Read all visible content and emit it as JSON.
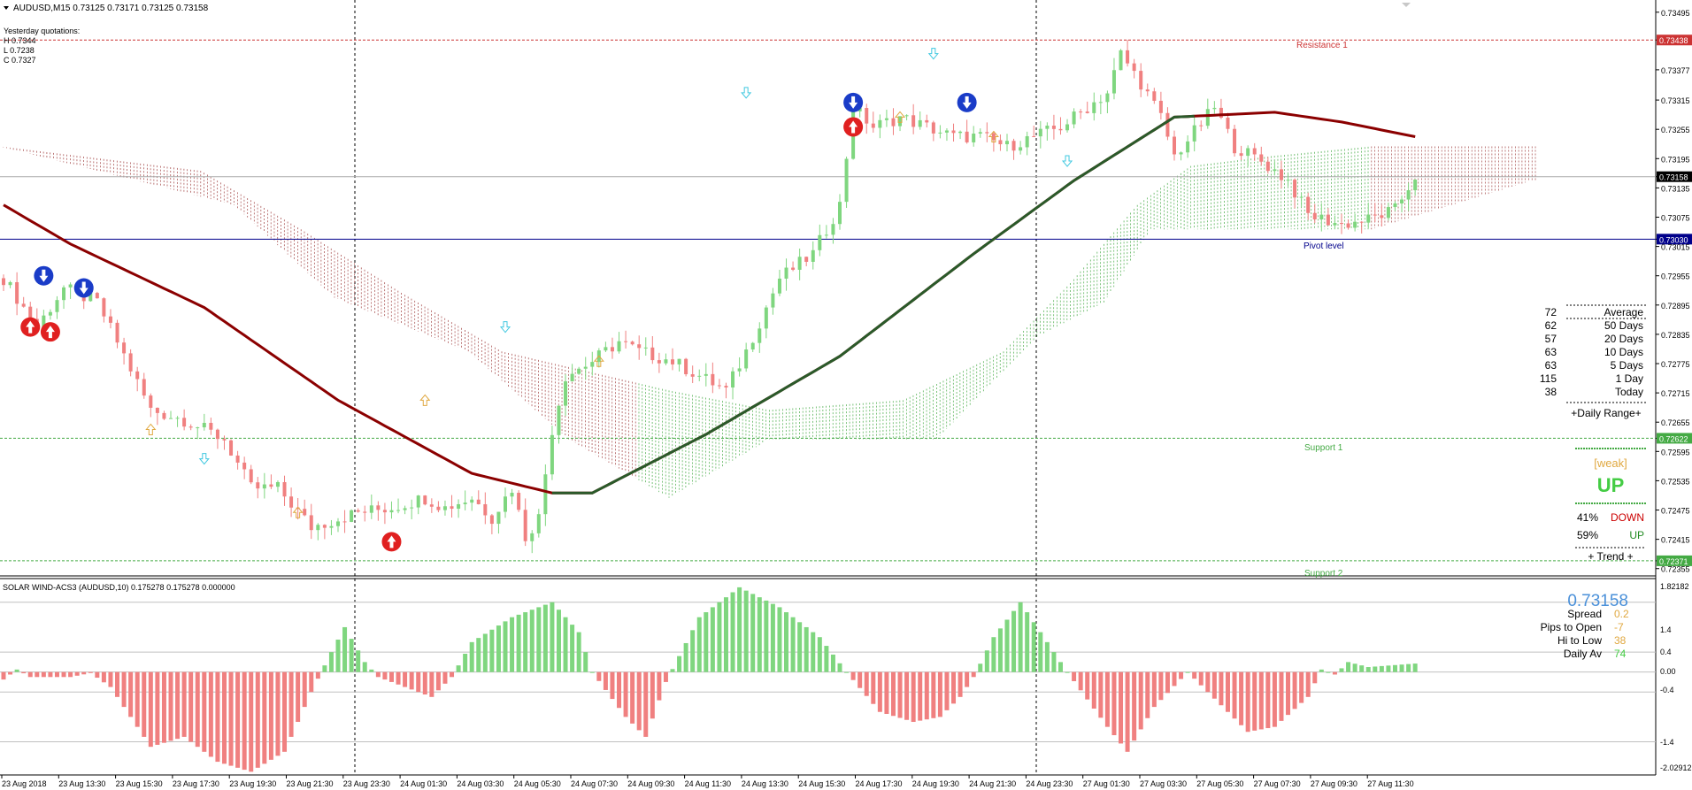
{
  "header": {
    "symbol_line": "AUDUSD,M15  0.73125 0.73171 0.73125 0.73158",
    "yesterday_title": "Yesterday quotations:",
    "yesterday_high": "H 0.7344",
    "yesterday_low": "L 0.7238",
    "yesterday_close": "C 0.7327"
  },
  "levels": {
    "resistance_label": "Resistance 1",
    "resistance_value": "0.73438",
    "pivot_label": "Pivot level",
    "pivot_value": "0.73030",
    "support1_label": "Support 1",
    "support1_value": "0.72622",
    "support2_label": "Support 2",
    "support2_value": "0.72371",
    "current_price_tag": "0.73158"
  },
  "range_panel": {
    "rows": [
      {
        "value": "72",
        "label": "Average"
      },
      {
        "value": "62",
        "label": "50 Days"
      },
      {
        "value": "57",
        "label": "20 Days"
      },
      {
        "value": "63",
        "label": "10 Days"
      },
      {
        "value": "63",
        "label": "5 Days"
      },
      {
        "value": "115",
        "label": "1 Day"
      },
      {
        "value": "38",
        "label": "Today"
      }
    ],
    "footer": "+Daily Range+"
  },
  "trend_panel": {
    "strength": "[weak]",
    "direction": "UP",
    "down_pct": "41%",
    "down_label": "DOWN",
    "up_pct": "59%",
    "up_label": "UP",
    "footer": "+   Trend   +"
  },
  "indicator": {
    "title": "SOLAR WIND-ACS3 (AUDUSD,10) 0.175278 0.175278 0.000000",
    "price": "0.73158",
    "stats": [
      {
        "label": "Spread",
        "value": "0.2"
      },
      {
        "label": "Pips to Open",
        "value": "-7"
      },
      {
        "label": "Hi to Low",
        "value": "38"
      },
      {
        "label": "Daily Av",
        "value": "74"
      }
    ],
    "axis": {
      "top": "1.82182",
      "l14": "1.4",
      "l04": "0.4",
      "l00": "0.00",
      "lm04": "-0.4",
      "lm14": "-1.4",
      "bottom": "-2.02912"
    }
  },
  "colors": {
    "bull": "#7fd67f",
    "bear": "#f08080",
    "resistance": "#cc3333",
    "pivot": "#00008b",
    "support": "#44aa44",
    "ma": "#8b0000",
    "ma_up": "#0a2a0a",
    "cloud_bear": "#a04040",
    "cloud_bull": "#44aa44",
    "price_tag": "#000000"
  },
  "chart_data": {
    "type": "candlestick",
    "y_axis_ticks": [
      "0.73495",
      "0.73438",
      "0.73377",
      "0.73315",
      "0.73255",
      "0.73195",
      "0.73158",
      "0.73135",
      "0.73075",
      "0.73030",
      "0.73015",
      "0.72955",
      "0.72895",
      "0.72835",
      "0.72775",
      "0.72715",
      "0.72655",
      "0.72622",
      "0.72595",
      "0.72535",
      "0.72475",
      "0.72415",
      "0.72371",
      "0.72355"
    ],
    "x_axis_labels": [
      "23 Aug 2018",
      "23 Aug 13:30",
      "23 Aug 15:30",
      "23 Aug 17:30",
      "23 Aug 19:30",
      "23 Aug 21:30",
      "23 Aug 23:30",
      "24 Aug 01:30",
      "24 Aug 03:30",
      "24 Aug 05:30",
      "24 Aug 07:30",
      "24 Aug 09:30",
      "24 Aug 11:30",
      "24 Aug 13:30",
      "24 Aug 15:30",
      "24 Aug 17:30",
      "24 Aug 19:30",
      "24 Aug 21:30",
      "24 Aug 23:30",
      "27 Aug 01:30",
      "27 Aug 03:30",
      "27 Aug 05:30",
      "27 Aug 07:30",
      "27 Aug 09:30",
      "27 Aug 11:30"
    ],
    "ylim": [
      0.7234,
      0.7352
    ],
    "close_anchors": [
      [
        0,
        0.7295
      ],
      [
        5,
        0.7285
      ],
      [
        9,
        0.7293
      ],
      [
        14,
        0.729
      ],
      [
        17,
        0.7282
      ],
      [
        22,
        0.7268
      ],
      [
        27,
        0.7266
      ],
      [
        33,
        0.7262
      ],
      [
        37,
        0.7252
      ],
      [
        41,
        0.7252
      ],
      [
        46,
        0.7244
      ],
      [
        53,
        0.7247
      ],
      [
        58,
        0.7248
      ],
      [
        63,
        0.725
      ],
      [
        66,
        0.7248
      ],
      [
        70,
        0.725
      ],
      [
        73,
        0.7246
      ],
      [
        76,
        0.7252
      ],
      [
        78,
        0.7242
      ],
      [
        80,
        0.7246
      ],
      [
        82,
        0.7264
      ],
      [
        84,
        0.7275
      ],
      [
        88,
        0.7278
      ],
      [
        92,
        0.7282
      ],
      [
        95,
        0.728
      ],
      [
        100,
        0.7278
      ],
      [
        104,
        0.7275
      ],
      [
        108,
        0.7272
      ],
      [
        111,
        0.728
      ],
      [
        116,
        0.7295
      ],
      [
        121,
        0.73
      ],
      [
        125,
        0.731
      ],
      [
        127,
        0.733
      ],
      [
        130,
        0.7326
      ],
      [
        134,
        0.7328
      ],
      [
        138,
        0.7326
      ],
      [
        142,
        0.7324
      ],
      [
        146,
        0.7324
      ],
      [
        150,
        0.7322
      ],
      [
        154,
        0.7324
      ],
      [
        158,
        0.7326
      ],
      [
        162,
        0.733
      ],
      [
        165,
        0.7333
      ],
      [
        167,
        0.7341
      ],
      [
        170,
        0.7335
      ],
      [
        173,
        0.7328
      ],
      [
        175,
        0.732
      ],
      [
        178,
        0.7325
      ],
      [
        181,
        0.733
      ],
      [
        184,
        0.7322
      ],
      [
        188,
        0.7319
      ],
      [
        192,
        0.7315
      ],
      [
        195,
        0.7308
      ],
      [
        200,
        0.7306
      ],
      [
        204,
        0.7307
      ],
      [
        208,
        0.7309
      ],
      [
        211,
        0.7316
      ]
    ],
    "ma_line": [
      [
        0,
        0.731
      ],
      [
        10,
        0.7302
      ],
      [
        30,
        0.7289
      ],
      [
        50,
        0.727
      ],
      [
        70,
        0.7255
      ],
      [
        82,
        0.7251
      ],
      [
        88,
        0.7251
      ],
      [
        105,
        0.7263
      ],
      [
        125,
        0.7279
      ],
      [
        145,
        0.73
      ],
      [
        160,
        0.7315
      ],
      [
        175,
        0.7328
      ],
      [
        190,
        0.7329
      ],
      [
        200,
        0.7327
      ],
      [
        211,
        0.7324
      ]
    ],
    "indicator_values": [
      [
        0,
        -0.15
      ],
      [
        2,
        0.05
      ],
      [
        4,
        -0.1
      ],
      [
        10,
        -0.1
      ],
      [
        13,
        -0.02
      ],
      [
        16,
        -0.3
      ],
      [
        22,
        -1.5
      ],
      [
        27,
        -1.3
      ],
      [
        32,
        -1.8
      ],
      [
        37,
        -2.0
      ],
      [
        42,
        -1.6
      ],
      [
        46,
        -0.4
      ],
      [
        49,
        0.4
      ],
      [
        51,
        0.9
      ],
      [
        54,
        0.2
      ],
      [
        56,
        -0.1
      ],
      [
        60,
        -0.3
      ],
      [
        64,
        -0.5
      ],
      [
        67,
        -0.1
      ],
      [
        70,
        0.6
      ],
      [
        76,
        1.1
      ],
      [
        82,
        1.4
      ],
      [
        86,
        0.8
      ],
      [
        88,
        0.0
      ],
      [
        93,
        -0.9
      ],
      [
        96,
        -1.3
      ],
      [
        99,
        -0.2
      ],
      [
        104,
        1.1
      ],
      [
        110,
        1.7
      ],
      [
        116,
        1.3
      ],
      [
        122,
        0.7
      ],
      [
        126,
        0.0
      ],
      [
        131,
        -0.8
      ],
      [
        136,
        -1.0
      ],
      [
        140,
        -0.9
      ],
      [
        143,
        -0.5
      ],
      [
        145,
        -0.1
      ],
      [
        148,
        0.7
      ],
      [
        152,
        1.4
      ],
      [
        156,
        0.6
      ],
      [
        159,
        0.0
      ],
      [
        165,
        -1.1
      ],
      [
        168,
        -1.6
      ],
      [
        172,
        -0.7
      ],
      [
        177,
        0.0
      ],
      [
        180,
        -0.4
      ],
      [
        186,
        -1.2
      ],
      [
        190,
        -1.1
      ],
      [
        195,
        -0.5
      ],
      [
        197,
        0.05
      ],
      [
        199,
        -0.05
      ],
      [
        201,
        0.2
      ],
      [
        204,
        0.1
      ],
      [
        211,
        0.17
      ]
    ],
    "indicator_ylim": [
      -2.02912,
      1.82182
    ]
  }
}
